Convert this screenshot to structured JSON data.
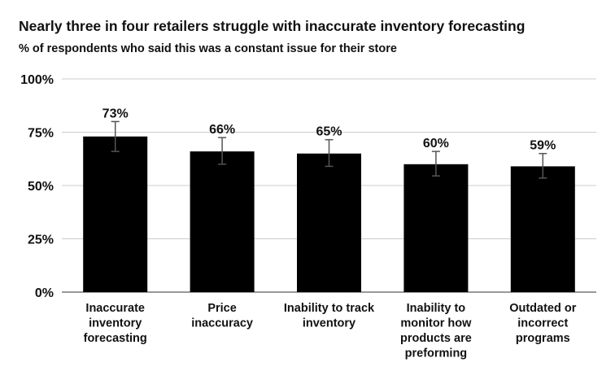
{
  "chart_data": {
    "type": "bar",
    "title": "Nearly three in four retailers struggle with inaccurate inventory forecasting",
    "subtitle": "% of respondents who said this was a constant issue for their store",
    "categories": [
      [
        "Inaccurate",
        "inventory",
        "forecasting"
      ],
      [
        "Price",
        "inaccuracy"
      ],
      [
        "Inability to track",
        "inventory"
      ],
      [
        "Inability to",
        "monitor how",
        "products are",
        "preforming"
      ],
      [
        "Outdated or",
        "incorrect",
        "programs"
      ]
    ],
    "values": [
      73,
      66,
      65,
      60,
      59
    ],
    "data_labels": [
      "73%",
      "66%",
      "65%",
      "60%",
      "59%"
    ],
    "error_bars": [
      {
        "low": 66,
        "high": 80
      },
      {
        "low": 60,
        "high": 72.5
      },
      {
        "low": 59,
        "high": 71.5
      },
      {
        "low": 54.5,
        "high": 66
      },
      {
        "low": 53.5,
        "high": 65
      }
    ],
    "ylim": [
      0,
      100
    ],
    "yticks": [
      0,
      25,
      50,
      75,
      100
    ],
    "ytick_labels": [
      "0%",
      "25%",
      "50%",
      "75%",
      "100%"
    ],
    "grid": true,
    "legend": "none",
    "bar_color": "#000000",
    "grid_color": "#cccccc",
    "error_bar_color": "#555555"
  }
}
